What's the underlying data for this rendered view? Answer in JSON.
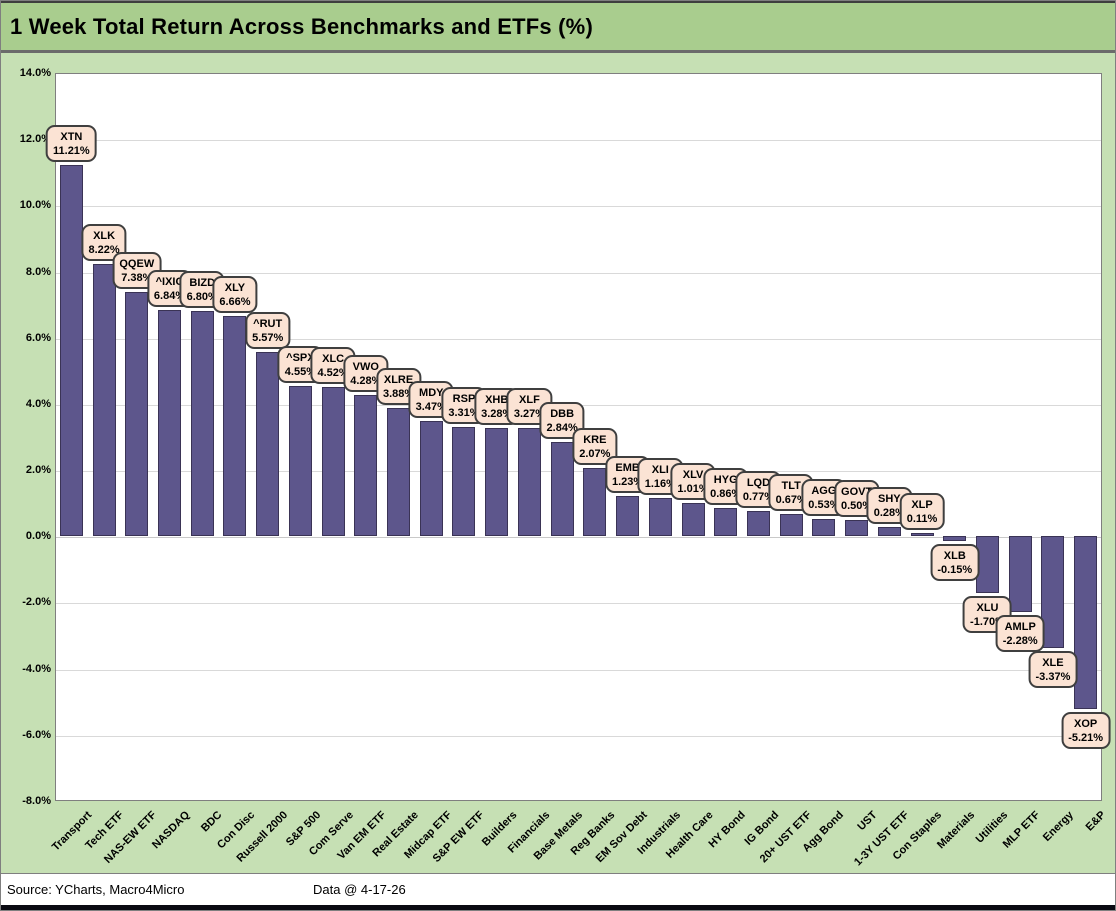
{
  "title": "1 Week Total Return Across Benchmarks and ETFs (%)",
  "footer": {
    "source": "Source: YCharts, Macro4Micro",
    "data_date": "Data @ 4-17-26"
  },
  "chart_data": {
    "type": "bar",
    "title": "1 Week Total Return Across Benchmarks and ETFs (%)",
    "xlabel": "",
    "ylabel": "",
    "ylim": [
      -8,
      14
    ],
    "ytick_step": 2,
    "y_tick_labels": [
      "14.0%",
      "12.0%",
      "10.0%",
      "8.0%",
      "6.0%",
      "4.0%",
      "2.0%",
      "0.0%",
      "-2.0%",
      "-4.0%",
      "-6.0%",
      "-8.0%"
    ],
    "grid": true,
    "legend": false,
    "bars": [
      {
        "category": "Transport",
        "ticker": "XTN",
        "value": 11.21,
        "display": "11.21%"
      },
      {
        "category": "Tech ETF",
        "ticker": "XLK",
        "value": 8.22,
        "display": "8.22%"
      },
      {
        "category": "NAS-EW ETF",
        "ticker": "QQEW",
        "value": 7.38,
        "display": "7.38%"
      },
      {
        "category": "NASDAQ",
        "ticker": "^IXIC",
        "value": 6.84,
        "display": "6.84%"
      },
      {
        "category": "BDC",
        "ticker": "BIZD",
        "value": 6.8,
        "display": "6.80%"
      },
      {
        "category": "Con Disc",
        "ticker": "XLY",
        "value": 6.66,
        "display": "6.66%"
      },
      {
        "category": "Russell 2000",
        "ticker": "^RUT",
        "value": 5.57,
        "display": "5.57%"
      },
      {
        "category": "S&P 500",
        "ticker": "^SPX",
        "value": 4.55,
        "display": "4.55%"
      },
      {
        "category": "Com Serve",
        "ticker": "XLC",
        "value": 4.52,
        "display": "4.52%"
      },
      {
        "category": "Van EM ETF",
        "ticker": "VWO",
        "value": 4.28,
        "display": "4.28%"
      },
      {
        "category": "Real Estate",
        "ticker": "XLRE",
        "value": 3.88,
        "display": "3.88%"
      },
      {
        "category": "Midcap ETF",
        "ticker": "MDY",
        "value": 3.47,
        "display": "3.47%"
      },
      {
        "category": "S&P EW ETF",
        "ticker": "RSP",
        "value": 3.31,
        "display": "3.31%"
      },
      {
        "category": "Builders",
        "ticker": "XHB",
        "value": 3.28,
        "display": "3.28%"
      },
      {
        "category": "Financials",
        "ticker": "XLF",
        "value": 3.27,
        "display": "3.27%"
      },
      {
        "category": "Base Metals",
        "ticker": "DBB",
        "value": 2.84,
        "display": "2.84%"
      },
      {
        "category": "Reg Banks",
        "ticker": "KRE",
        "value": 2.07,
        "display": "2.07%"
      },
      {
        "category": "EM Sov Debt",
        "ticker": "EMB",
        "value": 1.23,
        "display": "1.23%"
      },
      {
        "category": "Industrials",
        "ticker": "XLI",
        "value": 1.16,
        "display": "1.16%"
      },
      {
        "category": "Health Care",
        "ticker": "XLV",
        "value": 1.01,
        "display": "1.01%"
      },
      {
        "category": "HY Bond",
        "ticker": "HYG",
        "value": 0.86,
        "display": "0.86%"
      },
      {
        "category": "IG Bond",
        "ticker": "LQD",
        "value": 0.77,
        "display": "0.77%"
      },
      {
        "category": "20+ UST ETF",
        "ticker": "TLT",
        "value": 0.67,
        "display": "0.67%"
      },
      {
        "category": "Agg Bond",
        "ticker": "AGG",
        "value": 0.53,
        "display": "0.53%"
      },
      {
        "category": "UST",
        "ticker": "GOVT",
        "value": 0.5,
        "display": "0.50%"
      },
      {
        "category": "1-3Y UST ETF",
        "ticker": "SHY",
        "value": 0.28,
        "display": "0.28%"
      },
      {
        "category": "Con Staples",
        "ticker": "XLP",
        "value": 0.11,
        "display": "0.11%"
      },
      {
        "category": "Materials",
        "ticker": "XLB",
        "value": -0.15,
        "display": "-0.15%"
      },
      {
        "category": "Utilities",
        "ticker": "XLU",
        "value": -1.7,
        "display": "-1.70%"
      },
      {
        "category": "MLP ETF",
        "ticker": "AMLP",
        "value": -2.28,
        "display": "-2.28%"
      },
      {
        "category": "Energy",
        "ticker": "XLE",
        "value": -3.37,
        "display": "-3.37%"
      },
      {
        "category": "E&P",
        "ticker": "XOP",
        "value": -5.21,
        "display": "-5.21%"
      }
    ]
  },
  "colors": {
    "page_bg": "#c6e0b4",
    "title_bar_bg": "#a9cd8e",
    "plot_bg": "#ffffff",
    "bar_fill": "#5d568c",
    "bar_border": "#3a3355",
    "label_box_bg": "#fbe3d4",
    "label_box_border": "#3f3f3f",
    "gridline": "#d9d9d9",
    "bottom_bar": "#0a0a12"
  }
}
